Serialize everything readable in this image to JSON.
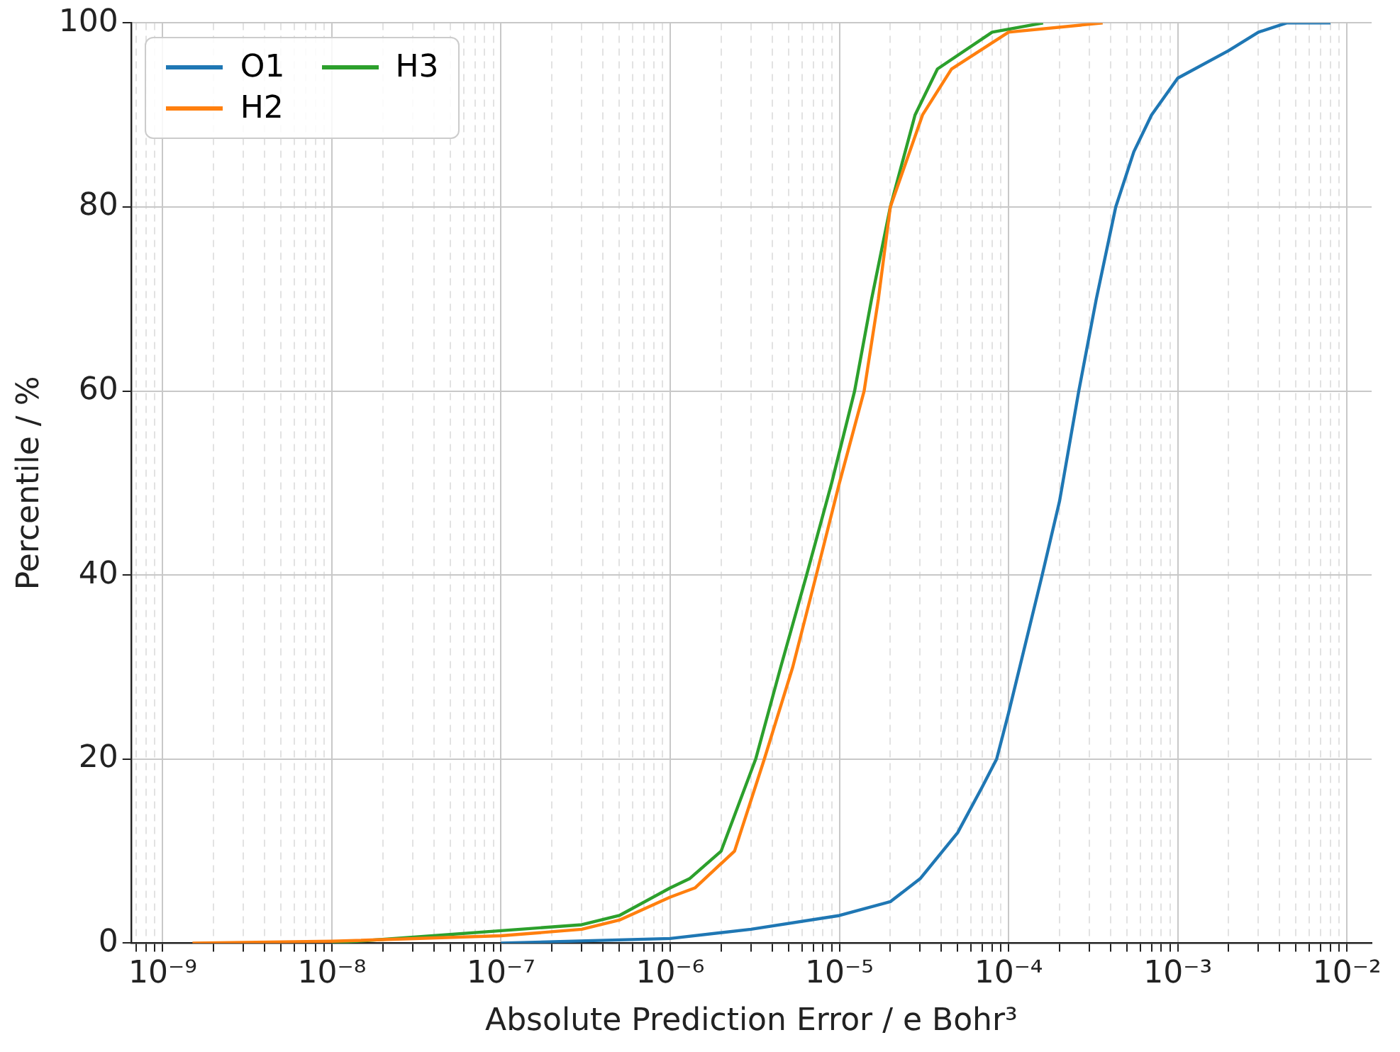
{
  "chart_data": {
    "type": "line",
    "xlabel": "Absolute Prediction Error / e Bohr³",
    "ylabel": "Percentile / %",
    "log": "x",
    "xlim": [
      6.5e-10,
      0.014
    ],
    "ylim": [
      0,
      100
    ],
    "xticks": [
      {
        "value": 7e-10,
        "label": null
      },
      {
        "value": 8e-10,
        "label": null
      },
      {
        "value": 9e-10,
        "label": null
      },
      {
        "value": 1e-09,
        "label": "10⁻⁹"
      },
      {
        "value": 2e-09,
        "label": null
      },
      {
        "value": 3e-09,
        "label": null
      },
      {
        "value": 4e-09,
        "label": null
      },
      {
        "value": 5e-09,
        "label": null
      },
      {
        "value": 6e-09,
        "label": null
      },
      {
        "value": 7e-09,
        "label": null
      },
      {
        "value": 8e-09,
        "label": null
      },
      {
        "value": 9e-09,
        "label": null
      },
      {
        "value": 1e-08,
        "label": "10⁻⁸"
      },
      {
        "value": 2e-08,
        "label": null
      },
      {
        "value": 3e-08,
        "label": null
      },
      {
        "value": 4e-08,
        "label": null
      },
      {
        "value": 5e-08,
        "label": null
      },
      {
        "value": 6e-08,
        "label": null
      },
      {
        "value": 7e-08,
        "label": null
      },
      {
        "value": 8e-08,
        "label": null
      },
      {
        "value": 9e-08,
        "label": null
      },
      {
        "value": 1e-07,
        "label": "10⁻⁷"
      },
      {
        "value": 2e-07,
        "label": null
      },
      {
        "value": 3e-07,
        "label": null
      },
      {
        "value": 4e-07,
        "label": null
      },
      {
        "value": 5e-07,
        "label": null
      },
      {
        "value": 6e-07,
        "label": null
      },
      {
        "value": 7e-07,
        "label": null
      },
      {
        "value": 8e-07,
        "label": null
      },
      {
        "value": 9e-07,
        "label": null
      },
      {
        "value": 1e-06,
        "label": "10⁻⁶"
      },
      {
        "value": 2e-06,
        "label": null
      },
      {
        "value": 3e-06,
        "label": null
      },
      {
        "value": 4e-06,
        "label": null
      },
      {
        "value": 5e-06,
        "label": null
      },
      {
        "value": 6e-06,
        "label": null
      },
      {
        "value": 7e-06,
        "label": null
      },
      {
        "value": 8e-06,
        "label": null
      },
      {
        "value": 9e-06,
        "label": null
      },
      {
        "value": 1e-05,
        "label": "10⁻⁵"
      },
      {
        "value": 2e-05,
        "label": null
      },
      {
        "value": 3e-05,
        "label": null
      },
      {
        "value": 4e-05,
        "label": null
      },
      {
        "value": 5e-05,
        "label": null
      },
      {
        "value": 6e-05,
        "label": null
      },
      {
        "value": 7e-05,
        "label": null
      },
      {
        "value": 8e-05,
        "label": null
      },
      {
        "value": 9e-05,
        "label": null
      },
      {
        "value": 0.0001,
        "label": "10⁻⁴"
      },
      {
        "value": 0.0002,
        "label": null
      },
      {
        "value": 0.0003,
        "label": null
      },
      {
        "value": 0.0004,
        "label": null
      },
      {
        "value": 0.0005,
        "label": null
      },
      {
        "value": 0.0006,
        "label": null
      },
      {
        "value": 0.0007,
        "label": null
      },
      {
        "value": 0.0008,
        "label": null
      },
      {
        "value": 0.0009,
        "label": null
      },
      {
        "value": 0.001,
        "label": "10⁻³"
      },
      {
        "value": 0.002,
        "label": null
      },
      {
        "value": 0.003,
        "label": null
      },
      {
        "value": 0.004,
        "label": null
      },
      {
        "value": 0.005,
        "label": null
      },
      {
        "value": 0.006,
        "label": null
      },
      {
        "value": 0.007,
        "label": null
      },
      {
        "value": 0.008,
        "label": null
      },
      {
        "value": 0.009,
        "label": null
      },
      {
        "value": 0.01,
        "label": "10⁻²"
      }
    ],
    "yticks": [
      0,
      20,
      40,
      60,
      80,
      100
    ],
    "grid": true,
    "legend": "top left",
    "line_style": "solid",
    "marker": "none",
    "series": [
      {
        "name": "O1",
        "color": "#1f77b4",
        "x": [
          1e-07,
          1e-06,
          3e-06,
          1e-05,
          2e-05,
          3e-05,
          5e-05,
          7e-05,
          8.5e-05,
          0.0001,
          0.000158,
          0.0002,
          0.00026,
          0.00033,
          0.00043,
          0.00055,
          0.0007,
          0.001,
          0.002,
          0.003,
          0.0044,
          0.008
        ],
        "values": [
          0,
          0.5,
          1.5,
          3,
          4.5,
          7,
          12,
          17,
          20,
          25,
          40,
          48,
          60,
          70,
          80,
          86,
          90,
          94,
          97,
          99,
          100,
          100
        ]
      },
      {
        "name": "H2",
        "color": "#ff7f0e",
        "x": [
          1.5e-09,
          1e-08,
          1e-07,
          3e-07,
          5e-07,
          1e-06,
          1.4e-06,
          2.4e-06,
          3.6e-06,
          5.3e-06,
          7.3e-06,
          1e-05,
          1.4e-05,
          1.7e-05,
          2e-05,
          3.1e-05,
          4.6e-05,
          0.0001,
          0.00036
        ],
        "values": [
          0,
          0.2,
          0.8,
          1.5,
          2.5,
          5,
          6,
          10,
          20,
          30,
          40,
          50,
          60,
          70,
          80,
          90,
          95,
          99,
          100
        ]
      },
      {
        "name": "H3",
        "color": "#2ca02c",
        "x": [
          1e-08,
          3e-07,
          5e-07,
          1e-06,
          1.3e-06,
          2e-06,
          3.2e-06,
          4.5e-06,
          6.4e-06,
          9e-06,
          1.23e-05,
          1.55e-05,
          2e-05,
          2.8e-05,
          3.8e-05,
          8e-05,
          0.00016
        ],
        "values": [
          0,
          2,
          3,
          6,
          7,
          10,
          20,
          30,
          40,
          50,
          60,
          70,
          80,
          90,
          95,
          99,
          100
        ]
      }
    ]
  }
}
